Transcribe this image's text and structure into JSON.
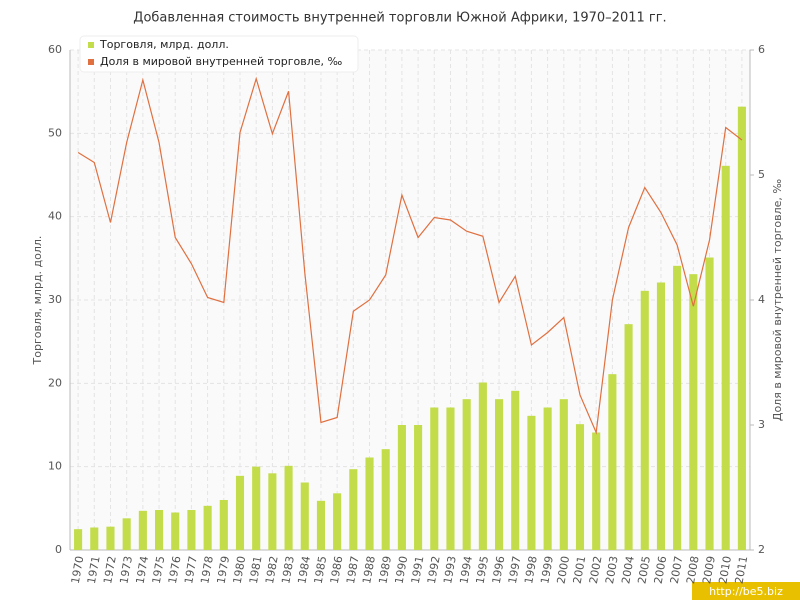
{
  "chart_data": {
    "type": "bar_line",
    "title": "Добавленная стоимость внутренней торговли Южной Африки, 1970–2011 гг.",
    "y_label": "Торговля, млрд. долл.",
    "y2_label": "Доля в мировой внутренней торговле, ‰",
    "categories": [
      "1970",
      "1971",
      "1972",
      "1973",
      "1974",
      "1975",
      "1976",
      "1977",
      "1978",
      "1979",
      "1980",
      "1981",
      "1982",
      "1983",
      "1984",
      "1985",
      "1986",
      "1987",
      "1988",
      "1989",
      "1990",
      "1991",
      "1992",
      "1993",
      "1994",
      "1995",
      "1996",
      "1997",
      "1998",
      "1999",
      "2000",
      "2001",
      "2002",
      "2003",
      "2004",
      "2005",
      "2006",
      "2007",
      "2008",
      "2009",
      "2010",
      "2011"
    ],
    "series": [
      {
        "name": "Торговля, млрд. долл.",
        "color": "#c2dc4a",
        "kind": "bar",
        "values": [
          2.5,
          2.7,
          2.8,
          3.8,
          4.7,
          4.8,
          4.5,
          4.8,
          5.3,
          6.0,
          8.9,
          10.0,
          9.2,
          10.1,
          8.1,
          5.9,
          6.8,
          9.7,
          11.1,
          12.1,
          15.0,
          15.0,
          17.1,
          17.1,
          18.1,
          20.1,
          18.1,
          19.1,
          16.1,
          17.1,
          18.1,
          15.1,
          14.1,
          21.1,
          27.1,
          31.1,
          32.1,
          34.1,
          33.1,
          35.1,
          46.1,
          53.2
        ]
      },
      {
        "name": "Доля в мировой внутренней торговле, ‰",
        "color": "#e07040",
        "kind": "line",
        "axis": "y2",
        "values": [
          5.18,
          5.1,
          4.62,
          5.26,
          5.76,
          5.26,
          4.5,
          4.29,
          4.02,
          3.98,
          5.34,
          5.77,
          5.33,
          5.67,
          4.22,
          3.02,
          3.06,
          3.91,
          4.0,
          4.2,
          4.84,
          4.5,
          4.66,
          4.64,
          4.55,
          4.51,
          3.98,
          4.19,
          3.64,
          3.74,
          3.86,
          3.24,
          2.94,
          4.0,
          4.58,
          4.9,
          4.7,
          4.44,
          3.95,
          4.48,
          5.38,
          5.28
        ]
      }
    ],
    "ylim": [
      0,
      60
    ],
    "yticks": [
      0,
      10,
      20,
      30,
      40,
      50,
      60
    ],
    "y2lim": [
      2,
      6
    ],
    "y2ticks": [
      2,
      3,
      4,
      5,
      6
    ],
    "grid": true,
    "legend": "top-left",
    "watermark": "http://be5.biz"
  }
}
